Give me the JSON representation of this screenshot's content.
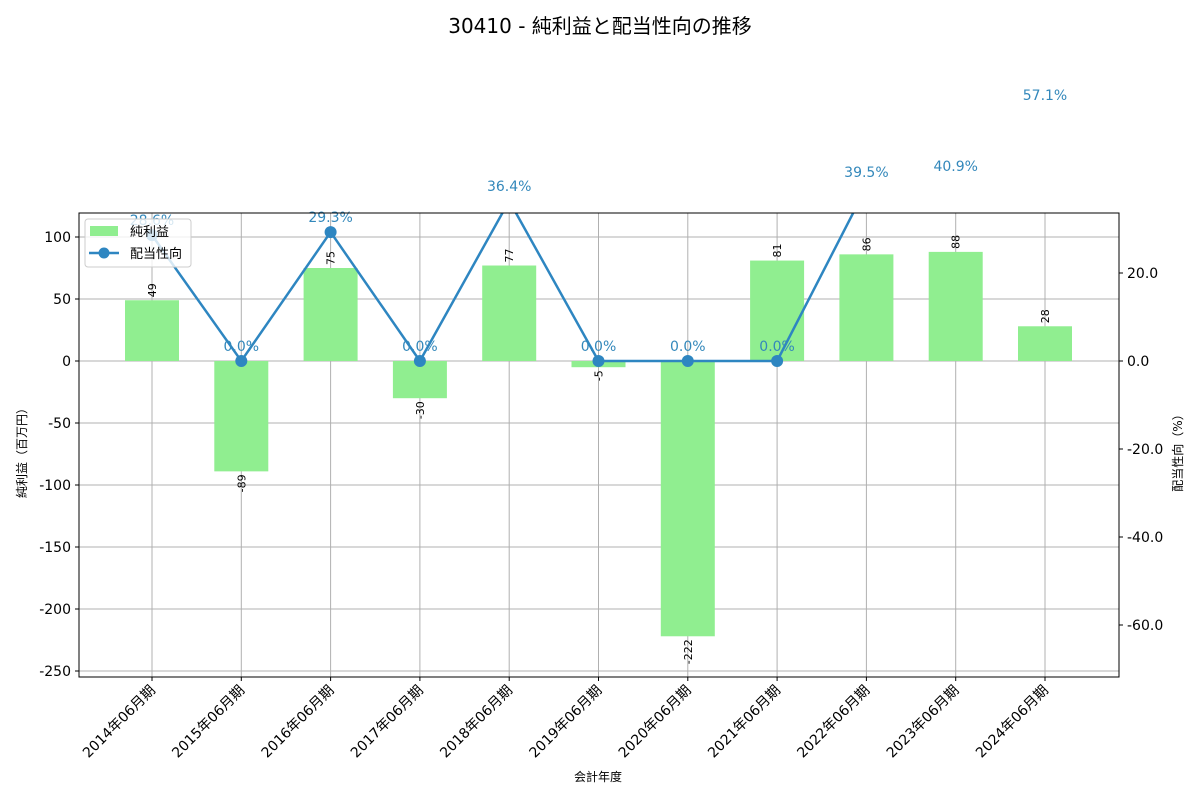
{
  "chart_data": {
    "type": "bar+line",
    "title": "30410 - 純利益と配当性向の推移",
    "xlabel": "会計年度",
    "ylabel_left": "純利益（百万円）",
    "ylabel_right": "配当性向（%）",
    "categories": [
      "2014年06月期",
      "2015年06月期",
      "2016年06月期",
      "2017年06月期",
      "2018年06月期",
      "2019年06月期",
      "2020年06月期",
      "2021年06月期",
      "2022年06月期",
      "2023年06月期",
      "2024年06月期"
    ],
    "series": [
      {
        "name": "純利益",
        "type": "bar",
        "axis": "left",
        "color": "#90ee90",
        "values": [
          49,
          -89,
          75,
          -30,
          77,
          -5,
          -222,
          81,
          86,
          88,
          28
        ]
      },
      {
        "name": "配当性向",
        "type": "line",
        "axis": "right",
        "color": "#2e86c1",
        "values": [
          28.6,
          0.0,
          29.3,
          0.0,
          36.4,
          0.0,
          0.0,
          0.0,
          39.5,
          40.9,
          57.1
        ],
        "labels": [
          "28.6%",
          "0.0%",
          "29.3%",
          "0.0%",
          "36.4%",
          "0.0%",
          "0.0%",
          "0.0%",
          "39.5%",
          "40.9%",
          "57.1%"
        ]
      }
    ],
    "ylim_left": [
      -255,
      119
    ],
    "ylim_right": [
      -71.4,
      33.4
    ],
    "yticks_left": [
      100,
      50,
      0,
      -50,
      -100,
      -150,
      -200,
      -250
    ],
    "yticks_right": [
      "20.0",
      "0.0",
      "-20.0",
      "-40.0",
      "-60.0"
    ],
    "ytick_right_values": [
      20,
      0,
      -20,
      -40,
      -60
    ],
    "grid": true,
    "legend_position": "upper left"
  },
  "legend": {
    "items": [
      "純利益",
      "配当性向"
    ]
  }
}
